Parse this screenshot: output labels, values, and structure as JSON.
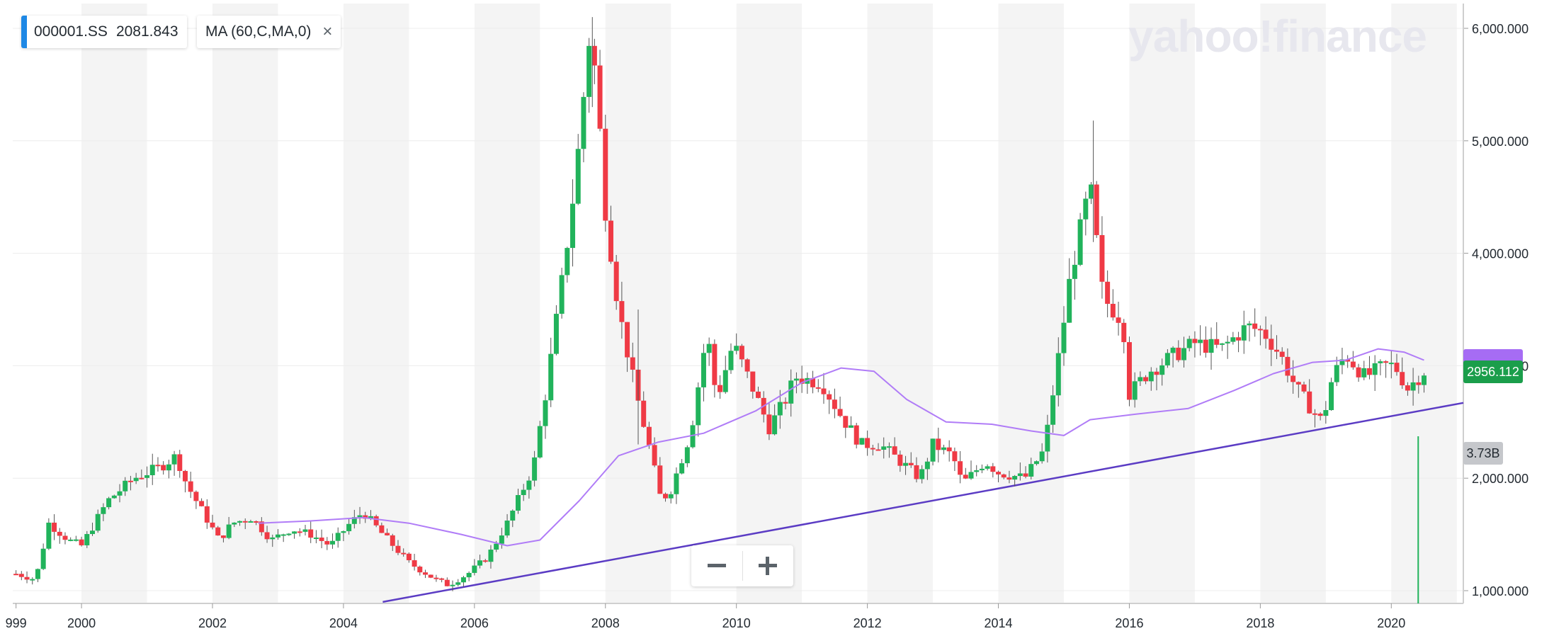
{
  "legend": {
    "symbol": "000001.SS",
    "last_value": "2081.843",
    "indicator": "MA (60,C,MA,0)",
    "close_icon": "×"
  },
  "watermark": "yahoo!finance",
  "price_tag": "2956.112",
  "volume_tag": "3.73B",
  "zoom": {
    "minus_icon": "minus-icon",
    "plus_icon": "plus-icon"
  },
  "colors": {
    "up": "#21b35b",
    "down": "#ef3a45",
    "ma": "#b07cf7",
    "trendline": "#5b3cc4",
    "band": "#f4f4f4",
    "price_tag": "#1b9e4b",
    "ma_tag": "#a66cf4"
  },
  "chart_data": {
    "type": "candlestick",
    "interval": "monthly",
    "x_tick_labels": [
      "999",
      "2000",
      "2002",
      "2004",
      "2006",
      "2008",
      "2010",
      "2012",
      "2014",
      "2016",
      "2018",
      "2020"
    ],
    "y_tick_labels": [
      "1,000.000",
      "2,000.000",
      "3,000.000",
      "4,000.000",
      "5,000.000",
      "6,000.000"
    ],
    "y_ticks": [
      1000,
      2000,
      3000,
      4000,
      5000,
      6000
    ],
    "x_range": [
      1998.95,
      2021.1
    ],
    "ylim": [
      900,
      6250
    ],
    "scale": "linear",
    "grid": true,
    "year_bands": [
      2000,
      2002,
      2004,
      2006,
      2008,
      2010,
      2012,
      2014,
      2016,
      2018,
      2020
    ],
    "trendline": [
      [
        2004.6,
        900
      ],
      [
        2021.1,
        2670
      ]
    ],
    "volume_bar": {
      "x": 2020.4,
      "value": "3.73B"
    },
    "close_anchors": [
      [
        1999.0,
        1150
      ],
      [
        1999.3,
        1100
      ],
      [
        1999.5,
        1600
      ],
      [
        1999.8,
        1450
      ],
      [
        2000.0,
        1400
      ],
      [
        2000.4,
        1800
      ],
      [
        2000.8,
        2000
      ],
      [
        2001.2,
        2100
      ],
      [
        2001.45,
        2200
      ],
      [
        2001.6,
        1950
      ],
      [
        2001.9,
        1650
      ],
      [
        2002.1,
        1450
      ],
      [
        2002.3,
        1600
      ],
      [
        2002.6,
        1650
      ],
      [
        2002.9,
        1450
      ],
      [
        2003.2,
        1550
      ],
      [
        2003.5,
        1500
      ],
      [
        2003.8,
        1400
      ],
      [
        2004.1,
        1600
      ],
      [
        2004.3,
        1700
      ],
      [
        2004.6,
        1500
      ],
      [
        2005.0,
        1250
      ],
      [
        2005.4,
        1100
      ],
      [
        2005.6,
        1050
      ],
      [
        2005.9,
        1150
      ],
      [
        2006.2,
        1300
      ],
      [
        2006.5,
        1600
      ],
      [
        2006.9,
        2100
      ],
      [
        2007.1,
        2800
      ],
      [
        2007.35,
        3800
      ],
      [
        2007.55,
        4700
      ],
      [
        2007.75,
        5900
      ],
      [
        2007.85,
        5600
      ],
      [
        2008.0,
        4400
      ],
      [
        2008.2,
        3500
      ],
      [
        2008.45,
        2800
      ],
      [
        2008.7,
        2200
      ],
      [
        2008.85,
        1800
      ],
      [
        2009.0,
        1900
      ],
      [
        2009.3,
        2400
      ],
      [
        2009.55,
        3300
      ],
      [
        2009.7,
        2700
      ],
      [
        2009.95,
        3200
      ],
      [
        2010.25,
        2800
      ],
      [
        2010.5,
        2450
      ],
      [
        2010.75,
        2700
      ],
      [
        2010.9,
        2900
      ],
      [
        2011.3,
        2850
      ],
      [
        2011.6,
        2550
      ],
      [
        2011.9,
        2300
      ],
      [
        2012.2,
        2300
      ],
      [
        2012.5,
        2150
      ],
      [
        2012.8,
        2000
      ],
      [
        2013.0,
        2300
      ],
      [
        2013.3,
        2200
      ],
      [
        2013.45,
        1950
      ],
      [
        2013.8,
        2150
      ],
      [
        2014.0,
        2050
      ],
      [
        2014.4,
        2000
      ],
      [
        2014.7,
        2250
      ],
      [
        2014.95,
        3200
      ],
      [
        2015.1,
        3800
      ],
      [
        2015.4,
        4600
      ],
      [
        2015.6,
        3600
      ],
      [
        2015.9,
        3400
      ],
      [
        2016.0,
        2750
      ],
      [
        2016.3,
        2950
      ],
      [
        2016.7,
        3100
      ],
      [
        2017.0,
        3200
      ],
      [
        2017.4,
        3150
      ],
      [
        2017.8,
        3350
      ],
      [
        2018.05,
        3300
      ],
      [
        2018.3,
        3100
      ],
      [
        2018.55,
        2800
      ],
      [
        2018.8,
        2600
      ],
      [
        2018.95,
        2500
      ],
      [
        2019.1,
        2900
      ],
      [
        2019.3,
        3100
      ],
      [
        2019.6,
        2900
      ],
      [
        2019.9,
        3000
      ],
      [
        2020.05,
        3000
      ],
      [
        2020.25,
        2800
      ],
      [
        2020.5,
        2950
      ]
    ],
    "ma_anchors": [
      [
        2002.7,
        1600
      ],
      [
        2003.5,
        1620
      ],
      [
        2004.3,
        1650
      ],
      [
        2005.0,
        1600
      ],
      [
        2005.8,
        1500
      ],
      [
        2006.5,
        1400
      ],
      [
        2007.0,
        1450
      ],
      [
        2007.6,
        1800
      ],
      [
        2008.2,
        2200
      ],
      [
        2008.8,
        2320
      ],
      [
        2009.5,
        2400
      ],
      [
        2010.3,
        2600
      ],
      [
        2011.0,
        2850
      ],
      [
        2011.6,
        2980
      ],
      [
        2012.1,
        2950
      ],
      [
        2012.6,
        2700
      ],
      [
        2013.2,
        2500
      ],
      [
        2013.9,
        2480
      ],
      [
        2014.5,
        2420
      ],
      [
        2015.0,
        2380
      ],
      [
        2015.4,
        2520
      ],
      [
        2016.1,
        2570
      ],
      [
        2016.9,
        2620
      ],
      [
        2017.6,
        2780
      ],
      [
        2018.2,
        2930
      ],
      [
        2018.8,
        3030
      ],
      [
        2019.3,
        3050
      ],
      [
        2019.8,
        3150
      ],
      [
        2020.2,
        3120
      ],
      [
        2020.5,
        3050
      ]
    ],
    "wick_spikes": [
      [
        2007.8,
        6100,
        5300
      ],
      [
        2015.45,
        5180,
        4100
      ],
      [
        2008.5,
        3500,
        2300
      ]
    ]
  }
}
